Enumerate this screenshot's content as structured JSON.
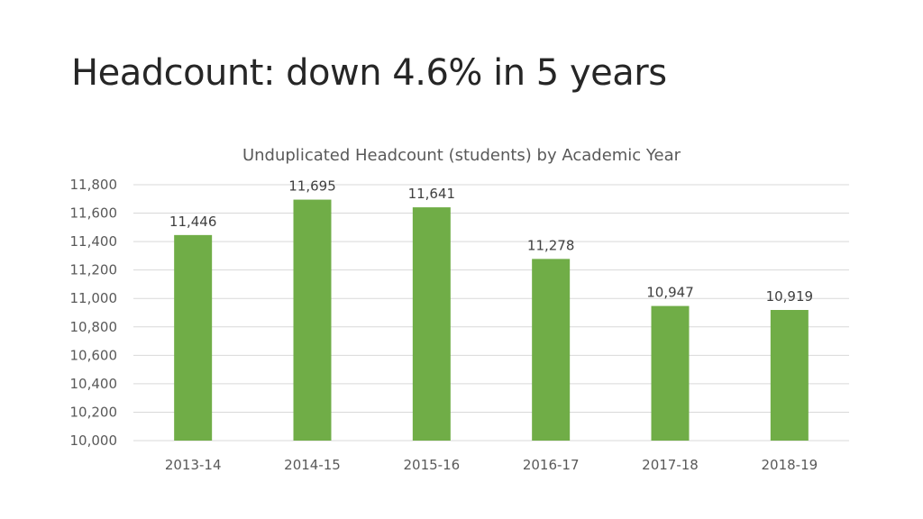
{
  "slide": {
    "title": "Headcount:  down 4.6% in 5 years"
  },
  "chart_data": {
    "type": "bar",
    "title": "Unduplicated Headcount (students) by Academic Year",
    "xlabel": "",
    "ylabel": "",
    "categories": [
      "2013-14",
      "2014-15",
      "2015-16",
      "2016-17",
      "2017-18",
      "2018-19"
    ],
    "values": [
      11446,
      11695,
      11641,
      11278,
      10947,
      10919
    ],
    "data_labels": [
      "11,446",
      "11,695",
      "11,641",
      "11,278",
      "10,947",
      "10,919"
    ],
    "ylim": [
      10000,
      11800
    ],
    "yticks": [
      "10,000",
      "10,200",
      "10,400",
      "10,600",
      "10,800",
      "11,000",
      "11,200",
      "11,400",
      "11,600",
      "11,800"
    ],
    "grid": true,
    "legend": "none",
    "bar_color": "#70ad47"
  }
}
